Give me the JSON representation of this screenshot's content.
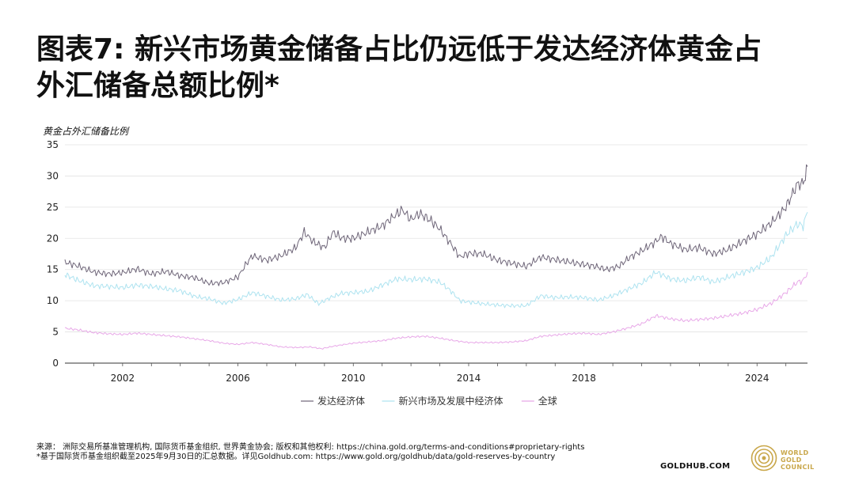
{
  "title": {
    "line1": "图表7:  新兴市场黄金储备占比仍远低于发达经济体黄金占",
    "line2": "外汇储备总额比例*"
  },
  "chart_data": {
    "type": "line",
    "ylabel": "黄金占外汇储备比例",
    "ylim": [
      0,
      35
    ],
    "yticks": [
      0,
      5,
      10,
      15,
      20,
      25,
      30,
      35
    ],
    "xlim": [
      2000.0,
      2025.75
    ],
    "xticks": [
      2002,
      2006,
      2010,
      2014,
      2018,
      2024
    ],
    "grid": "horizontal",
    "legend": "bottom-center",
    "series": [
      {
        "name": "发达经济体",
        "color": "#6e6578",
        "points": [
          [
            2000.0,
            16.2
          ],
          [
            2000.5,
            15.5
          ],
          [
            2001.0,
            14.6
          ],
          [
            2001.5,
            14.3
          ],
          [
            2002.0,
            14.5
          ],
          [
            2002.5,
            15.1
          ],
          [
            2003.0,
            14.3
          ],
          [
            2003.5,
            14.7
          ],
          [
            2004.0,
            14.0
          ],
          [
            2004.5,
            13.7
          ],
          [
            2005.0,
            12.8
          ],
          [
            2005.5,
            12.9
          ],
          [
            2006.0,
            13.8
          ],
          [
            2006.3,
            16.0
          ],
          [
            2006.5,
            17.2
          ],
          [
            2007.0,
            16.5
          ],
          [
            2007.5,
            17.2
          ],
          [
            2008.0,
            18.5
          ],
          [
            2008.3,
            21.0
          ],
          [
            2008.6,
            19.5
          ],
          [
            2009.0,
            18.5
          ],
          [
            2009.3,
            21.0
          ],
          [
            2009.6,
            20.0
          ],
          [
            2010.0,
            20.0
          ],
          [
            2010.5,
            21.0
          ],
          [
            2011.0,
            22.0
          ],
          [
            2011.4,
            23.5
          ],
          [
            2011.7,
            24.6
          ],
          [
            2012.0,
            23.0
          ],
          [
            2012.3,
            24.0
          ],
          [
            2012.7,
            22.8
          ],
          [
            2013.0,
            21.5
          ],
          [
            2013.4,
            19.0
          ],
          [
            2013.7,
            17.0
          ],
          [
            2014.0,
            17.6
          ],
          [
            2014.5,
            17.5
          ],
          [
            2015.0,
            16.5
          ],
          [
            2015.5,
            16.0
          ],
          [
            2016.0,
            15.5
          ],
          [
            2016.5,
            17.0
          ],
          [
            2017.0,
            16.6
          ],
          [
            2017.5,
            16.2
          ],
          [
            2018.0,
            15.8
          ],
          [
            2018.4,
            15.5
          ],
          [
            2018.8,
            15.0
          ],
          [
            2019.2,
            15.5
          ],
          [
            2019.6,
            17.0
          ],
          [
            2020.0,
            18.0
          ],
          [
            2020.4,
            19.2
          ],
          [
            2020.7,
            20.3
          ],
          [
            2021.0,
            19.2
          ],
          [
            2021.5,
            18.2
          ],
          [
            2022.0,
            18.5
          ],
          [
            2022.5,
            17.5
          ],
          [
            2023.0,
            18.2
          ],
          [
            2023.5,
            19.5
          ],
          [
            2024.0,
            20.7
          ],
          [
            2024.5,
            22.5
          ],
          [
            2025.0,
            25.0
          ],
          [
            2025.4,
            28.7
          ],
          [
            2025.6,
            28.8
          ],
          [
            2025.75,
            31.5
          ]
        ]
      },
      {
        "name": "新兴市场及发展中经济体",
        "color": "#aee3f0",
        "points": [
          [
            2000.0,
            14.2
          ],
          [
            2000.5,
            13.2
          ],
          [
            2001.0,
            12.4
          ],
          [
            2001.5,
            12.3
          ],
          [
            2002.0,
            12.1
          ],
          [
            2002.5,
            12.5
          ],
          [
            2003.0,
            12.3
          ],
          [
            2003.5,
            11.9
          ],
          [
            2004.0,
            11.6
          ],
          [
            2004.5,
            10.7
          ],
          [
            2005.0,
            10.3
          ],
          [
            2005.5,
            9.6
          ],
          [
            2006.0,
            10.2
          ],
          [
            2006.5,
            11.3
          ],
          [
            2007.0,
            10.7
          ],
          [
            2007.5,
            10.1
          ],
          [
            2008.0,
            10.3
          ],
          [
            2008.4,
            11.0
          ],
          [
            2008.8,
            9.5
          ],
          [
            2009.2,
            10.5
          ],
          [
            2009.6,
            11.2
          ],
          [
            2010.0,
            11.3
          ],
          [
            2010.5,
            11.5
          ],
          [
            2011.0,
            12.5
          ],
          [
            2011.5,
            13.5
          ],
          [
            2012.0,
            13.4
          ],
          [
            2012.5,
            13.5
          ],
          [
            2013.0,
            13.0
          ],
          [
            2013.4,
            11.5
          ],
          [
            2013.7,
            10.0
          ],
          [
            2014.0,
            9.8
          ],
          [
            2014.5,
            9.5
          ],
          [
            2015.0,
            9.3
          ],
          [
            2015.5,
            9.2
          ],
          [
            2016.0,
            9.2
          ],
          [
            2016.5,
            10.8
          ],
          [
            2017.0,
            10.5
          ],
          [
            2017.5,
            10.6
          ],
          [
            2018.0,
            10.5
          ],
          [
            2018.5,
            10.1
          ],
          [
            2019.0,
            10.8
          ],
          [
            2019.5,
            11.8
          ],
          [
            2020.0,
            12.8
          ],
          [
            2020.5,
            14.6
          ],
          [
            2021.0,
            13.5
          ],
          [
            2021.5,
            13.2
          ],
          [
            2022.0,
            13.8
          ],
          [
            2022.5,
            13.0
          ],
          [
            2023.0,
            13.8
          ],
          [
            2023.5,
            14.5
          ],
          [
            2024.0,
            15.3
          ],
          [
            2024.5,
            17.0
          ],
          [
            2025.0,
            20.5
          ],
          [
            2025.4,
            22.3
          ],
          [
            2025.6,
            22.0
          ],
          [
            2025.75,
            24.2
          ]
        ]
      },
      {
        "name": "全球",
        "color": "#e8a8e8",
        "points": [
          [
            2000.0,
            5.6
          ],
          [
            2000.5,
            5.3
          ],
          [
            2001.0,
            4.9
          ],
          [
            2001.5,
            4.7
          ],
          [
            2002.0,
            4.6
          ],
          [
            2002.5,
            4.8
          ],
          [
            2003.0,
            4.6
          ],
          [
            2003.5,
            4.4
          ],
          [
            2004.0,
            4.2
          ],
          [
            2004.5,
            3.9
          ],
          [
            2005.0,
            3.6
          ],
          [
            2005.5,
            3.2
          ],
          [
            2006.0,
            3.0
          ],
          [
            2006.5,
            3.3
          ],
          [
            2007.0,
            3.0
          ],
          [
            2007.5,
            2.6
          ],
          [
            2008.0,
            2.5
          ],
          [
            2008.5,
            2.6
          ],
          [
            2008.9,
            2.3
          ],
          [
            2009.3,
            2.7
          ],
          [
            2009.7,
            3.0
          ],
          [
            2010.0,
            3.2
          ],
          [
            2010.5,
            3.4
          ],
          [
            2011.0,
            3.6
          ],
          [
            2011.5,
            4.0
          ],
          [
            2012.0,
            4.2
          ],
          [
            2012.5,
            4.3
          ],
          [
            2013.0,
            4.0
          ],
          [
            2013.5,
            3.6
          ],
          [
            2014.0,
            3.3
          ],
          [
            2014.5,
            3.3
          ],
          [
            2015.0,
            3.3
          ],
          [
            2015.5,
            3.4
          ],
          [
            2016.0,
            3.6
          ],
          [
            2016.5,
            4.3
          ],
          [
            2017.0,
            4.5
          ],
          [
            2017.5,
            4.7
          ],
          [
            2018.0,
            4.8
          ],
          [
            2018.5,
            4.6
          ],
          [
            2019.0,
            5.0
          ],
          [
            2019.5,
            5.6
          ],
          [
            2020.0,
            6.3
          ],
          [
            2020.5,
            7.6
          ],
          [
            2021.0,
            7.1
          ],
          [
            2021.5,
            6.8
          ],
          [
            2022.0,
            7.0
          ],
          [
            2022.5,
            7.2
          ],
          [
            2023.0,
            7.6
          ],
          [
            2023.5,
            8.0
          ],
          [
            2024.0,
            8.6
          ],
          [
            2024.5,
            9.6
          ],
          [
            2025.0,
            11.3
          ],
          [
            2025.4,
            13.0
          ],
          [
            2025.6,
            13.2
          ],
          [
            2025.75,
            14.6
          ]
        ]
      }
    ]
  },
  "footer": {
    "source_line": "来源：  洲际交易所基准管理机构, 国际货币基金组织, 世界黄金协会; 版权和其他权利: https://china.gold.org/terms-and-conditions#proprietary-rights",
    "note_line": "*基于国际货币基金组织截至2025年9月30日的汇总数据。详见Goldhub.com: https://www.gold.org/goldhub/data/gold-reserves-by-country",
    "site": "GOLDHUB.COM",
    "brand_line1": "WORLD",
    "brand_line2": "GOLD",
    "brand_line3": "COUNCIL",
    "brand_color": "#c9a74a"
  }
}
